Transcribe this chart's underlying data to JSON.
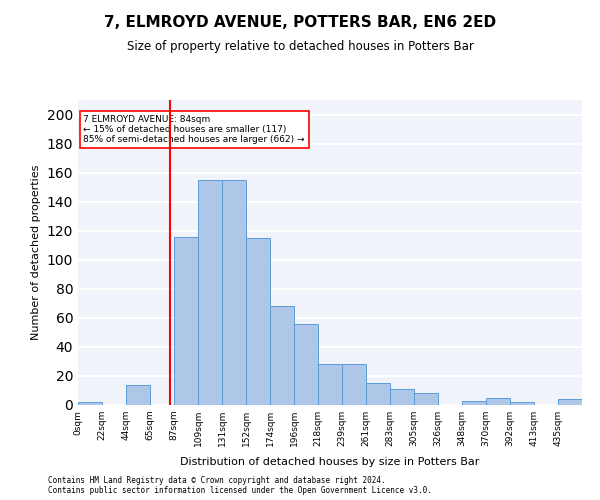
{
  "title": "7, ELMROYD AVENUE, POTTERS BAR, EN6 2ED",
  "subtitle": "Size of property relative to detached houses in Potters Bar",
  "xlabel": "Distribution of detached houses by size in Potters Bar",
  "ylabel": "Number of detached properties",
  "bar_values": [
    2,
    0,
    14,
    0,
    116,
    155,
    155,
    115,
    68,
    56,
    28,
    28,
    15,
    11,
    8,
    0,
    3,
    5,
    2,
    0,
    4
  ],
  "bin_labels": [
    "0sqm",
    "22sqm",
    "44sqm",
    "65sqm",
    "87sqm",
    "109sqm",
    "131sqm",
    "152sqm",
    "174sqm",
    "196sqm",
    "218sqm",
    "239sqm",
    "261sqm",
    "283sqm",
    "305sqm",
    "326sqm",
    "348sqm",
    "370sqm",
    "392sqm",
    "413sqm",
    "435sqm"
  ],
  "bar_color": "#aec6e8",
  "bar_edge_color": "#5b9bd5",
  "vline_x": 84,
  "vline_color": "red",
  "annotation_text": "7 ELMROYD AVENUE: 84sqm\n← 15% of detached houses are smaller (117)\n85% of semi-detached houses are larger (662) →",
  "annotation_box_color": "white",
  "annotation_box_edge": "red",
  "ylim": [
    0,
    210
  ],
  "yticks": [
    0,
    20,
    40,
    60,
    80,
    100,
    120,
    140,
    160,
    180,
    200
  ],
  "background_color": "#f0f4fa",
  "grid_color": "white",
  "footer_line1": "Contains HM Land Registry data © Crown copyright and database right 2024.",
  "footer_line2": "Contains public sector information licensed under the Open Government Licence v3.0."
}
